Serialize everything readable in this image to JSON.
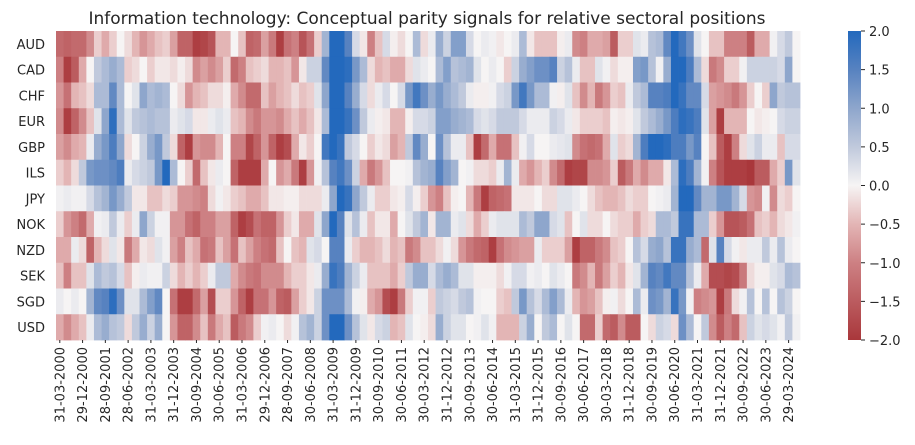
{
  "chart_data": {
    "type": "heatmap",
    "title": "Information technology: Conceptual parity signals for relative sectoral positions",
    "xlabel": "",
    "ylabel": "",
    "rows": [
      "AUD",
      "CAD",
      "CHF",
      "EUR",
      "GBP",
      "ILS",
      "JPY",
      "NOK",
      "NZD",
      "SEK",
      "SGD",
      "USD"
    ],
    "x_tick_labels": [
      "31-03-2000",
      "29-12-2000",
      "28-09-2001",
      "28-06-2002",
      "31-03-2003",
      "31-12-2003",
      "30-09-2004",
      "30-06-2005",
      "31-03-2006",
      "29-12-2006",
      "28-09-2007",
      "30-06-2008",
      "31-03-2009",
      "31-12-2009",
      "30-09-2010",
      "30-06-2011",
      "30-03-2012",
      "31-12-2012",
      "30-09-2013",
      "30-06-2014",
      "31-03-2015",
      "31-12-2015",
      "30-09-2016",
      "30-06-2017",
      "30-03-2018",
      "31-12-2018",
      "30-09-2019",
      "30-06-2020",
      "31-03-2021",
      "31-12-2021",
      "30-09-2022",
      "30-06-2023",
      "29-03-2024"
    ],
    "x_tick_every": 3,
    "colorbar": {
      "min": -2.0,
      "max": 2.0,
      "ticks": [
        "2.0",
        "1.5",
        "1.0",
        "0.5",
        "0.0",
        "−0.5",
        "−1.0",
        "−1.5",
        "−2.0"
      ],
      "colormap": "vlag",
      "colors": [
        "#a9373b",
        "#cd8083",
        "#e3b5b5",
        "#f6f4f4",
        "#c0c9dc",
        "#8ea6cc",
        "#5782c0",
        "#2369bd"
      ]
    },
    "grid": false,
    "values": [
      [
        -1.3,
        -1.4,
        -1.3,
        -1.3,
        -0.9,
        -0.3,
        -0.6,
        -0.3,
        0,
        -0.2,
        -0.5,
        -0.8,
        -0.6,
        -0.4,
        -0.3,
        -0.7,
        -1.4,
        -1.4,
        -1.9,
        -1.8,
        -1.6,
        -0.5,
        -0.5,
        0,
        -0.4,
        -1.4,
        -1.3,
        -0.7,
        -1.1,
        -1.9,
        -1.2,
        -1.0,
        -1.6,
        -1.2,
        -0.3,
        0.8,
        2,
        2,
        1.5,
        0.3,
        -0.1,
        -1.0,
        -0.4,
        0.3,
        -0.05,
        -0.2,
        0,
        0.7,
        -0.2,
        0.1,
        0.9,
        0.4,
        1.1,
        1.1,
        0.3,
        0,
        0.1,
        0.05,
        -0.1,
        0,
        0.1,
        0.7,
        -0.1,
        -0.4,
        -0.4,
        -0.4,
        -0.05,
        0.1,
        -0.9,
        -1.0,
        -0.6,
        -0.6,
        -0.7,
        -1.5,
        -0.3,
        -0.3,
        0.2,
        0.1,
        0.6,
        0.7,
        1.4,
        2,
        1.7,
        1.3,
        0.2,
        0,
        -0.4,
        -0.4,
        -1.0,
        -1.0,
        -1.0,
        -1.5,
        -0.6,
        -0.6,
        0.05,
        0.3,
        0.5,
        0
      ],
      [
        -1.0,
        -1.9,
        -1.5,
        -0.6,
        0,
        0.5,
        0.7,
        0.9,
        0.7,
        -0.3,
        -0.2,
        0,
        -0.3,
        -0.1,
        -0.1,
        -0.2,
        -0.05,
        -0.2,
        -0.9,
        -0.7,
        -0.9,
        -0.7,
        -0.3,
        -1.3,
        -1.0,
        -0.4,
        -0.3,
        -0.2,
        -0.5,
        -0.5,
        -0.4,
        -0.8,
        -0.1,
        0.4,
        0.4,
        1.4,
        2,
        2,
        1.9,
        1.2,
        0.7,
        -0.2,
        -0.5,
        -0.4,
        -0.6,
        -0.6,
        -0.2,
        0.2,
        0.1,
        0,
        0.7,
        1.1,
        0.6,
        0.7,
        0.8,
        0.2,
        0,
        0.1,
        0,
        -0.3,
        0.4,
        0.9,
        1.1,
        1.3,
        1.3,
        1.5,
        0.4,
        0.6,
        0.1,
        -0.4,
        -0.4,
        0.2,
        0.05,
        -0.2,
        -0.05,
        -0.05,
        1.1,
        1.2,
        0.6,
        0.05,
        0.9,
        2,
        2,
        1.6,
        0.7,
        -0.2,
        -1.1,
        -0.9,
        -0.3,
        -0.3,
        0.05,
        0.4,
        0.4,
        0.4,
        0.4,
        0.3,
        1.0,
        0
      ],
      [
        -0.8,
        -1.2,
        -0.5,
        -0.4,
        -0.2,
        0.7,
        0.7,
        1.4,
        0.7,
        0,
        0.2,
        1.0,
        0.7,
        0.8,
        0.7,
        0,
        -0.2,
        -0.8,
        -0.5,
        -0.4,
        -0.2,
        -0.2,
        -0.05,
        -0.6,
        -0.9,
        -1.3,
        -1.3,
        -0.4,
        -0.7,
        -0.5,
        -0.4,
        -0.2,
        -0.4,
        -0.3,
        0.2,
        1.0,
        2,
        2,
        1.5,
        0.9,
        0.3,
        -0.2,
        0.1,
        0.3,
        0,
        0.3,
        1.2,
        1.7,
        1.3,
        0.9,
        1.2,
        0.9,
        0.7,
        0.5,
        0.1,
        -0.05,
        -0.05,
        0.05,
        0.3,
        0.4,
        1.2,
        1.7,
        1.2,
        0.7,
        0.7,
        0.05,
        -0.05,
        0.2,
        -0.4,
        -0.9,
        -0.5,
        -1.1,
        -0.8,
        -0.3,
        -0.4,
        0.1,
        0.5,
        0.7,
        1.5,
        1.5,
        1.6,
        2,
        1.8,
        1.4,
        1.4,
        0.3,
        -0.7,
        -0.8,
        -0.9,
        -1.1,
        -0.8,
        -0.3,
        0,
        -0.3,
        1.0,
        0.5,
        0.6,
        0.6
      ],
      [
        -0.9,
        -1.9,
        -1.4,
        -0.9,
        -0.4,
        0.2,
        1.0,
        1.9,
        0.7,
        0.2,
        0.5,
        0.6,
        0.7,
        0.6,
        0.6,
        0.1,
        0.2,
        0.3,
        -0.1,
        -0.1,
        0.1,
        0.2,
        0.1,
        -0.4,
        -0.5,
        -0.9,
        -1.1,
        -0.8,
        -0.8,
        -0.9,
        -0.6,
        -0.4,
        -0.6,
        -0.4,
        -0.1,
        0.7,
        2,
        2,
        1.8,
        1.3,
        0.5,
        0.1,
        -0.05,
        -0.1,
        -0.5,
        -0.5,
        -0.05,
        0.3,
        0.3,
        0.4,
        1.1,
        1.1,
        0.9,
        0.8,
        0.7,
        0.3,
        0.2,
        0.3,
        0.5,
        0.5,
        0.5,
        0.3,
        0.1,
        0.1,
        0.1,
        0.4,
        0.3,
        0.1,
        -0.1,
        -0.3,
        -0.3,
        -0.3,
        -0.4,
        -0.05,
        -0.1,
        -0.05,
        0.2,
        0.5,
        0.7,
        0.9,
        1.2,
        1.6,
        1.9,
        1.8,
        1.6,
        0.2,
        -0.7,
        -1.9,
        -0.5,
        -0.5,
        -0.5,
        0,
        -0.1,
        -0.05,
        0,
        0.3,
        0.4,
        0.4
      ],
      [
        -0.7,
        -0.9,
        -0.6,
        -0.5,
        0.1,
        0.9,
        1.2,
        1.6,
        1.0,
        -0.2,
        0,
        0.4,
        0.9,
        1.2,
        0.5,
        -0.2,
        -1.4,
        -1.9,
        -0.8,
        -0.9,
        -0.9,
        -0.5,
        0,
        -1.0,
        -1.0,
        -1.8,
        -1.4,
        -0.8,
        -1.4,
        -1.9,
        -1.7,
        -0.6,
        -0.1,
        -0.3,
        0,
        1.7,
        2,
        1.8,
        0.5,
        0.3,
        0,
        -0.3,
        -0.1,
        -0.2,
        -0.7,
        -0.5,
        0.5,
        1.4,
        0.9,
        0,
        1.3,
        0.6,
        0.1,
        0.1,
        -0.4,
        -1.9,
        -1.3,
        -0.6,
        -1.2,
        -1.2,
        -0.4,
        0.05,
        0.3,
        0,
        0,
        0.1,
        0.15,
        0.2,
        -0.9,
        -1.2,
        -1.3,
        -1.2,
        -0.6,
        0.2,
        -0.3,
        -0.2,
        0.8,
        1.6,
        2,
        2,
        1.9,
        1.6,
        1.6,
        1.2,
        1.5,
        0,
        -0.4,
        -1.5,
        -1.9,
        -1.0,
        -0.2,
        0.2,
        0.4,
        0.1,
        0.1,
        -0.4,
        0.3,
        0.3
      ],
      [
        -0.3,
        -0.5,
        -0.2,
        0.5,
        1.2,
        1.3,
        1.3,
        1.4,
        1.6,
        0.1,
        0.3,
        0.4,
        0.5,
        1.2,
        2,
        0.7,
        0,
        -0.3,
        -1.3,
        -0.4,
        -0.1,
        0.1,
        0,
        -1.4,
        -1.9,
        -1.9,
        -1.9,
        -0.6,
        0,
        -0.8,
        -0.6,
        -1.1,
        -1.9,
        -0.8,
        0.05,
        0.6,
        1.5,
        1.7,
        1.3,
        0.4,
        -0.6,
        -1.1,
        -0.8,
        -0.4,
        0,
        0,
        0.05,
        0.6,
        0.8,
        0.9,
        1.5,
        1.1,
        0.8,
        0,
        0.05,
        -0.2,
        -0.2,
        -0.3,
        0.1,
        0.8,
        0.1,
        -0.6,
        -0.8,
        -0.5,
        -0.3,
        -0.9,
        -1.3,
        -1.9,
        -1.8,
        -1.8,
        -0.9,
        -0.9,
        -0.8,
        -0.3,
        -1.5,
        -1.1,
        -0.6,
        -0.9,
        -0.6,
        -0.6,
        -0.1,
        0.7,
        1.9,
        1.6,
        0.8,
        0.05,
        -1.0,
        -1.6,
        -1.9,
        -1.9,
        -1.9,
        -2,
        -1.5,
        -1.5,
        -0.6,
        -0.3,
        1.2,
        0.2
      ],
      [
        0.05,
        0.1,
        0.05,
        0.05,
        0.3,
        0.6,
        0.8,
        1.2,
        0.9,
        0.5,
        -0.1,
        -0.1,
        -0.4,
        -0.4,
        -0.2,
        -0.3,
        -0.8,
        -0.8,
        -0.9,
        -1.0,
        -0.2,
        0.05,
        -0.1,
        -0.3,
        -0.4,
        -0.6,
        -0.6,
        -0.4,
        -0.1,
        -0.1,
        -0.05,
        -0.05,
        -0.2,
        -0.2,
        -0.2,
        0.1,
        1.0,
        2,
        1.8,
        1.0,
        0.5,
        0.1,
        -0.3,
        -0.3,
        -0.1,
        -0.05,
        0.3,
        -0.05,
        -0.3,
        -0.8,
        -1.0,
        -0.4,
        -0.05,
        0,
        -0.5,
        -1.1,
        -1.9,
        -1.4,
        -1.3,
        -1.2,
        -0.1,
        -0.1,
        -0.1,
        0,
        -0.2,
        -0.2,
        0.2,
        0.2,
        0.1,
        0,
        -0.2,
        -0.4,
        -0.5,
        -0.5,
        -0.4,
        -0.2,
        -0.3,
        -0.3,
        0,
        0.05,
        0.1,
        0.8,
        2,
        2,
        1.4,
        0.8,
        0.8,
        1.2,
        1.2,
        0.8,
        0.3,
        -0.8,
        -0.9,
        0.05,
        -0.9,
        -0.2,
        -0.3,
        0
      ],
      [
        -0.3,
        -0.8,
        -1.0,
        -1.3,
        -0.6,
        0.05,
        0.1,
        0.5,
        0.1,
        -0.3,
        0.1,
        1.0,
        0.4,
        0.05,
        0.05,
        -0.8,
        -0.8,
        -1.2,
        -1.4,
        -1.0,
        -1.0,
        -0.7,
        -0.7,
        -1.4,
        -1.9,
        -1.7,
        -1.2,
        -1.4,
        -1.4,
        -0.8,
        -0.3,
        -0.1,
        -0.6,
        -0.6,
        0.2,
        1.0,
        2,
        1.5,
        0.2,
        0.6,
        0.1,
        -0.4,
        -0.1,
        -0.1,
        -0.6,
        0,
        0.2,
        0.5,
        0.8,
        -0.1,
        0.8,
        0.8,
        0.1,
        0.2,
        -0.2,
        -0.6,
        -0.3,
        0.1,
        0.2,
        0.2,
        0.2,
        0.7,
        0.5,
        1.0,
        1.0,
        0.3,
        0.2,
        -0.4,
        0,
        0.2,
        -0.2,
        -0.2,
        0,
        -0.2,
        -0.3,
        -0.3,
        -0.6,
        -0.3,
        -0.2,
        0.7,
        0.7,
        0.5,
        1.8,
        1.8,
        0.7,
        0.7,
        -0.3,
        -0.8,
        -1.6,
        -1.6,
        -1.5,
        -1.2,
        -0.4,
        -0.3,
        -0.5,
        -0.2,
        -0.1,
        0.05
      ],
      [
        -0.6,
        -0.6,
        0.1,
        -0.2,
        -1.4,
        -0.5,
        -0.2,
        0.2,
        -0.1,
        -1.1,
        -0.6,
        -0.1,
        -0.2,
        0.2,
        0.05,
        -0.7,
        -1.0,
        -0.4,
        -0.6,
        -1.2,
        -1.1,
        -0.4,
        -0.7,
        -1.2,
        -0.4,
        -0.7,
        -1.0,
        -1.2,
        -1.3,
        -0.4,
        0,
        -0.4,
        -0.5,
        0.2,
        0.3,
        0,
        1.5,
        1.5,
        0.1,
        -0.3,
        -0.5,
        -0.5,
        -0.4,
        -0.2,
        -0.5,
        -0.4,
        -1.1,
        -0.9,
        -0.4,
        -0.4,
        -0.2,
        0.05,
        -0.2,
        -0.8,
        -1.1,
        -1.3,
        -1.4,
        -1.9,
        -1.2,
        -0.9,
        -0.8,
        -0.7,
        -0.7,
        0.1,
        -0.3,
        -0.3,
        -0.3,
        -0.7,
        -1.9,
        -1.4,
        -1.4,
        -1.1,
        -0.9,
        -0.4,
        -0.3,
        0,
        0.6,
        0.3,
        0.9,
        1.0,
        0.6,
        1.8,
        1.8,
        0.9,
        0.7,
        -1.3,
        0.2,
        1.5,
        0.3,
        0.05,
        -0.1,
        0.1,
        0.1,
        0.5,
        0.1,
        0.6,
        0.1,
        0
      ],
      [
        -0.4,
        -1.0,
        -0.4,
        -0.4,
        0.2,
        0.7,
        0.5,
        0.6,
        0.3,
        -0.4,
        -0.05,
        0.1,
        0.05,
        0.05,
        0.4,
        -0.2,
        -0.5,
        -0.3,
        -0.5,
        -0.3,
        0.1,
        0.5,
        0.5,
        -0.6,
        -0.9,
        -1.1,
        -1.2,
        -0.9,
        -0.9,
        -0.9,
        -0.5,
        -0.3,
        -0.3,
        -0.1,
        0.1,
        0.9,
        1.8,
        1.6,
        0.8,
        0.4,
        0.1,
        -0.4,
        -0.4,
        -0.4,
        -0.6,
        -0.3,
        0.5,
        0.9,
        0.9,
        0.3,
        0.7,
        0.9,
        0.7,
        0.2,
        0.2,
        -0.05,
        -0.05,
        -0.05,
        -0.2,
        0.05,
        0.3,
        0.3,
        0.05,
        0.1,
        0,
        0.2,
        0.1,
        0,
        -1.1,
        -0.9,
        -0.5,
        -1.1,
        -0.7,
        -0.3,
        -0.5,
        -0.1,
        0.2,
        0.8,
        1.5,
        1.4,
        1.7,
        1.4,
        1.4,
        0.6,
        0.1,
        -0.6,
        -1.7,
        -1.7,
        -1.8,
        -1.7,
        -1.1,
        -0.2,
        -0.05,
        -0.05,
        0.2,
        0.3,
        0.7,
        0.6
      ],
      [
        0.1,
        0,
        0.1,
        0,
        0.8,
        1.4,
        1.5,
        1.9,
        1.3,
        0.2,
        0.2,
        0.7,
        1.1,
        1.4,
        0,
        -1.2,
        -1.9,
        -1.9,
        -1.3,
        -0.7,
        -1.7,
        -0.3,
        -0.3,
        -0.8,
        -1.4,
        -1.9,
        -1.2,
        -1.2,
        -0.8,
        -1.4,
        -1.5,
        -0.7,
        -0.3,
        -0.1,
        0.4,
        1.3,
        1.3,
        1.3,
        0.7,
        0.05,
        -0.05,
        -0.6,
        -0.8,
        -1.7,
        -1.9,
        -1.1,
        -0.3,
        0.05,
        0.05,
        -0.3,
        0.5,
        0.4,
        0.3,
        0.5,
        0.6,
        0.05,
        0,
        0,
        -0.3,
        -0.4,
        0.5,
        1.2,
        0.6,
        0.3,
        0.7,
        1.1,
        0.7,
        0.1,
        -0.5,
        -0.8,
        -0.7,
        -0.4,
        -0.05,
        0.05,
        -0.2,
        0,
        0.7,
        0.1,
        1.3,
        1.2,
        0.8,
        1.8,
        1.2,
        0.05,
        -1.0,
        -0.9,
        -0.8,
        -1.9,
        -1.1,
        -0.2,
        0.05,
        0.6,
        0,
        0.6,
        0,
        0.6,
        0.4,
        0
      ],
      [
        -0.6,
        -0.9,
        -0.6,
        -0.4,
        0.1,
        0.7,
        0.9,
        0.6,
        0.5,
        -0.2,
        0.5,
        0.9,
        0.4,
        0.9,
        0,
        -0.8,
        -1.4,
        -1.4,
        -0.9,
        -0.4,
        -1.1,
        -0.6,
        -0.4,
        -1.5,
        -1.1,
        -0.9,
        -0.3,
        0.05,
        0.1,
        0,
        -0.2,
        0.05,
        0.6,
        0.8,
        0.4,
        1.3,
        2,
        2,
        1.3,
        0.6,
        0.2,
        -0.1,
        0.3,
        0.4,
        -0.5,
        -0.4,
        0.2,
        0,
        -0.05,
        -0.2,
        0.9,
        0.4,
        0.2,
        0.2,
        0,
        0.05,
        0.2,
        0.05,
        -0.5,
        -0.5,
        -0.5,
        0.4,
        0.9,
        0,
        0.5,
        0.7,
        0,
        0.2,
        0,
        -1.3,
        -1.3,
        -0.3,
        -1.3,
        -1.5,
        -0.9,
        -1.5,
        -1.5,
        0,
        -0.2,
        0.4,
        0.3,
        -0.2,
        1.3,
        0.7,
        0,
        0.5,
        -0.9,
        -1.5,
        -1.0,
        -1.3,
        -0.4,
        0.4,
        0.2,
        0.3,
        0.2,
        0.05,
        0.5,
        0.05
      ]
    ]
  }
}
